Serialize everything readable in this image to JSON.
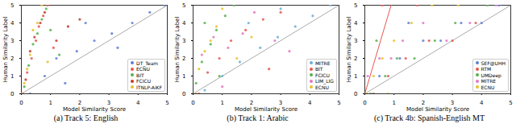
{
  "chart_data": [
    {
      "type": "scatter",
      "title": "(a) Track 5: English",
      "x_label": "Model Similarity Score",
      "y_label": "Human Similarity Label",
      "xlim": [
        0,
        5
      ],
      "ylim": [
        0,
        5
      ],
      "xticks": [
        0,
        1,
        2,
        3,
        4,
        5
      ],
      "yticks": [
        0,
        1,
        2,
        3,
        4,
        5
      ],
      "legend": "bottom-right",
      "grid": false,
      "series": [
        {
          "name": "DT_Team",
          "color": "#5b7fd4",
          "x": [
            0.3,
            0.8,
            1.2,
            1.9,
            2.5,
            3.1,
            3.8,
            4.4,
            4.9,
            2.2,
            1.5,
            3.3
          ],
          "values": [
            0,
            1,
            2,
            2.4,
            3,
            3.4,
            4,
            4.6,
            5,
            4,
            0.6,
            2.6
          ]
        },
        {
          "name": "ECNU",
          "color": "#e8554e",
          "x": [
            0.05,
            0.2,
            0.35,
            0.5,
            0.6,
            0.75,
            0.9,
            1.1
          ],
          "values": [
            0,
            1.2,
            2,
            3,
            3.8,
            4.4,
            5,
            2.6
          ]
        },
        {
          "name": "BIT",
          "color": "#56b04c",
          "x": [
            0.1,
            0.25,
            0.4,
            0.55,
            0.7,
            0.85,
            1.0,
            1.3
          ],
          "values": [
            0.4,
            1.6,
            2.8,
            3.4,
            4.2,
            4.8,
            3.6,
            2.2
          ]
        },
        {
          "name": "FCICU",
          "color": "#c0392b",
          "x": [
            0.15,
            0.3,
            0.45,
            0.65,
            0.8,
            1.2,
            1.6,
            2.0
          ],
          "values": [
            0.8,
            2.4,
            3.2,
            4,
            4.6,
            3,
            3.8,
            4.2
          ]
        },
        {
          "name": "ITNLP-AiKF",
          "color": "#e6c229",
          "x": [
            0.0,
            0.1,
            0.2,
            0.3,
            0.4,
            0.55,
            0.7,
            0.9
          ],
          "values": [
            0,
            0.6,
            1.4,
            2.2,
            3.6,
            4,
            5,
            1.8
          ]
        }
      ],
      "reference_lines": [
        {
          "color": "#aaaaaa",
          "x": [
            0,
            5
          ],
          "values": [
            0,
            5
          ]
        }
      ]
    },
    {
      "type": "scatter",
      "title": "(b) Track 1: Arabic",
      "x_label": "Model Similarity Score",
      "y_label": "Human Similarity Label",
      "xlim": [
        0,
        5
      ],
      "ylim": [
        0,
        5
      ],
      "xticks": [
        0,
        1,
        2,
        3,
        4,
        5
      ],
      "yticks": [
        0,
        1,
        2,
        3,
        4,
        5
      ],
      "legend": "bottom-right",
      "grid": false,
      "series": [
        {
          "name": "MITRE",
          "color": "#6baed6",
          "x": [
            0.4,
            1.0,
            1.6,
            2.3,
            2.9,
            3.5,
            4.1,
            4.7,
            1.9,
            3.0
          ],
          "values": [
            0.2,
            1,
            1.8,
            2.6,
            3.2,
            3.8,
            4.4,
            5,
            4,
            4.8
          ]
        },
        {
          "name": "BIT",
          "color": "#e8554e",
          "x": [
            0.2,
            0.5,
            0.9,
            1.3,
            1.8,
            2.4,
            3.0,
            2.6
          ],
          "values": [
            0,
            1.2,
            2,
            3,
            3.6,
            4.2,
            4.6,
            1.4
          ]
        },
        {
          "name": "FCICU",
          "color": "#56b04c",
          "x": [
            0.1,
            0.3,
            0.6,
            0.8,
            1.1,
            1.4,
            0.4,
            0.9
          ],
          "values": [
            0.6,
            1.8,
            2.8,
            3.6,
            4.4,
            5,
            4,
            1
          ]
        },
        {
          "name": "LIM_LIG",
          "color": "#e377c2",
          "x": [
            0.3,
            0.7,
            1.2,
            1.7,
            2.1,
            2.8,
            3.3,
            1.0
          ],
          "values": [
            2.2,
            3.2,
            2.6,
            3.4,
            4.6,
            3,
            2.4,
            0.4
          ]
        },
        {
          "name": "ECNU",
          "color": "#e6c229",
          "x": [
            0.1,
            0.2,
            0.4,
            0.6,
            0.8,
            1.0,
            1.5,
            2.0
          ],
          "values": [
            0,
            1.4,
            2.4,
            3,
            3.8,
            4.8,
            2,
            3.2
          ]
        }
      ],
      "reference_lines": [
        {
          "color": "#aaaaaa",
          "x": [
            0,
            5
          ],
          "values": [
            0,
            5
          ]
        }
      ]
    },
    {
      "type": "scatter",
      "title": "(c) Track 4b: Spanish-English MT",
      "x_label": "Model Similarity Score",
      "y_label": "Human Similarity Label",
      "xlim": [
        0,
        5
      ],
      "ylim": [
        0,
        5
      ],
      "xticks": [
        0,
        1,
        2,
        3,
        4,
        5
      ],
      "yticks": [
        0,
        1,
        2,
        3,
        4,
        5
      ],
      "legend": "bottom-right",
      "grid": false,
      "series": [
        {
          "name": "SEF@UHH",
          "color": "#5b7fd4",
          "x": [
            0.5,
            1.2,
            2.0,
            2.6,
            3.3,
            4.0,
            4.6,
            1.5
          ],
          "values": [
            1,
            2,
            3,
            3,
            4,
            4,
            5,
            4
          ]
        },
        {
          "name": "RTM",
          "color": "#e8554e",
          "x": [
            0.3,
            0.8,
            1.4,
            2.2,
            3.0,
            3.8,
            0.6,
            1.8
          ],
          "values": [
            0,
            1,
            2,
            3,
            3,
            4,
            5,
            5
          ]
        },
        {
          "name": "UMDeep",
          "color": "#56b04c",
          "x": [
            0.2,
            0.7,
            1.1,
            1.7,
            2.4,
            3.1,
            4.2,
            0.4
          ],
          "values": [
            0,
            1,
            2,
            2,
            3,
            4,
            5,
            3
          ]
        },
        {
          "name": "MITRE",
          "color": "#e377c2",
          "x": [
            0.1,
            0.5,
            0.9,
            1.3,
            2.8,
            3.6,
            4.5,
            2.0
          ],
          "values": [
            1,
            2,
            2,
            3,
            3,
            4,
            5,
            4
          ]
        },
        {
          "name": "ECNU",
          "color": "#e6c229",
          "x": [
            0.05,
            0.3,
            0.6,
            1.0,
            1.6,
            2.3,
            3.2,
            0.8
          ],
          "values": [
            0,
            1,
            2,
            3,
            4,
            5,
            5,
            0
          ]
        }
      ],
      "reference_lines": [
        {
          "color": "#aaaaaa",
          "x": [
            0,
            5
          ],
          "values": [
            0,
            5
          ]
        },
        {
          "color": "#e8554e",
          "x": [
            0,
            0.9
          ],
          "values": [
            0,
            5
          ]
        }
      ]
    }
  ]
}
